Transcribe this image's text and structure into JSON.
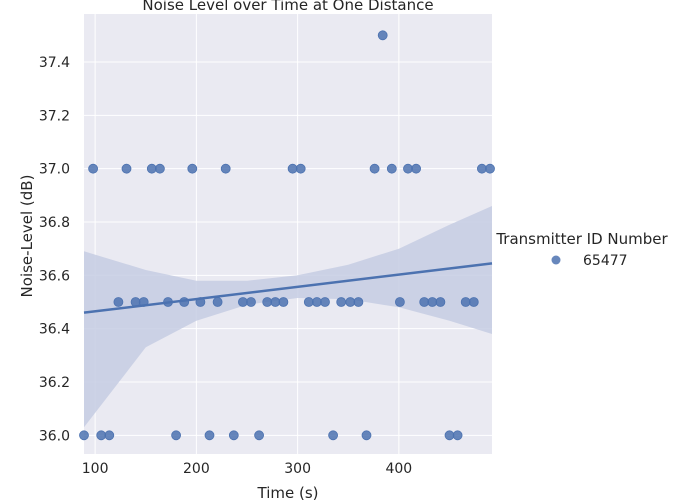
{
  "chart_data": {
    "type": "scatter",
    "title": "Noise Level over Time at One Distance",
    "xlabel": "Time (s)",
    "ylabel": "Noise-Level (dB)",
    "xlim": [
      89,
      492
    ],
    "ylim": [
      35.93,
      37.58
    ],
    "xticks": [
      100,
      200,
      300,
      400
    ],
    "yticks": [
      36.0,
      36.2,
      36.4,
      36.6,
      36.8,
      37.0,
      37.2,
      37.4
    ],
    "grid": true,
    "legend": {
      "title": "Transmitter ID Number",
      "placement": "right",
      "entries": [
        {
          "label": "65477",
          "color": "#4c72b0"
        }
      ]
    },
    "colors": {
      "background": "#eaeaf2",
      "grid": "#ffffff",
      "points": "#4c72b0",
      "band": "#c5cde3"
    },
    "series": [
      {
        "legend_label": "65477",
        "x": [
          89,
          98,
          106,
          114,
          123,
          131,
          140,
          148,
          156,
          164,
          172,
          180,
          188,
          196,
          204,
          213,
          221,
          229,
          237,
          246,
          254,
          262,
          270,
          278,
          286,
          295,
          303,
          311,
          319,
          327,
          335,
          343,
          352,
          360,
          368,
          376,
          384,
          393,
          401,
          409,
          417,
          425,
          433,
          441,
          450,
          458,
          466,
          474,
          482,
          490
        ],
        "y": [
          36.0,
          37.0,
          36.0,
          36.0,
          36.5,
          37.0,
          36.5,
          36.5,
          37.0,
          37.0,
          36.5,
          36.0,
          36.5,
          37.0,
          36.5,
          36.0,
          36.5,
          37.0,
          36.0,
          36.5,
          36.5,
          36.0,
          36.5,
          36.5,
          36.5,
          37.0,
          37.0,
          36.5,
          36.5,
          36.5,
          36.0,
          36.5,
          36.5,
          36.5,
          36.0,
          37.0,
          37.5,
          37.0,
          36.5,
          37.0,
          37.0,
          36.5,
          36.5,
          36.5,
          36.0,
          36.0,
          36.5,
          36.5,
          37.0,
          37.0
        ]
      }
    ],
    "regression": {
      "x": [
        89,
        492
      ],
      "y": [
        36.46,
        36.645
      ],
      "ci_x": [
        89,
        150,
        200,
        250,
        300,
        350,
        400,
        450,
        492
      ],
      "ci_lower": [
        36.03,
        36.33,
        36.43,
        36.49,
        36.515,
        36.51,
        36.48,
        36.43,
        36.38
      ],
      "ci_upper": [
        36.69,
        36.62,
        36.58,
        36.58,
        36.6,
        36.64,
        36.7,
        36.79,
        36.86
      ]
    }
  }
}
